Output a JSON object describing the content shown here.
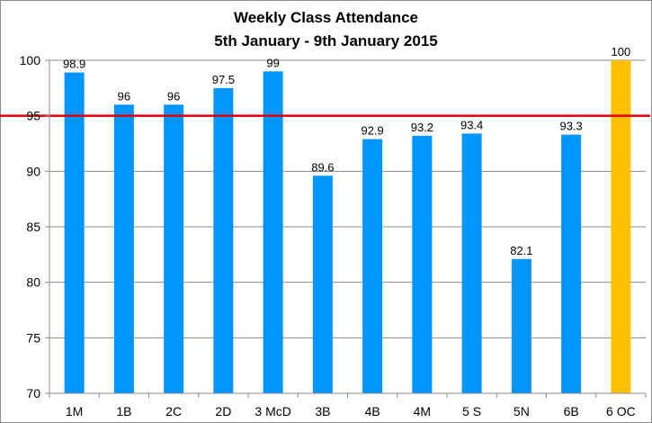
{
  "chart_data": {
    "type": "bar",
    "title": "Weekly Class Attendance",
    "subtitle": "5th January - 9th January 2015",
    "xlabel": "",
    "ylabel": "",
    "categories": [
      "1M",
      "1B",
      "2C",
      "2D",
      "3 McD",
      "3B",
      "4B",
      "4M",
      "5 S",
      "5N",
      "6B",
      "6 OC"
    ],
    "values": [
      98.9,
      96,
      96,
      97.5,
      99,
      89.6,
      92.9,
      93.2,
      93.4,
      82.1,
      93.3,
      100
    ],
    "data_labels": [
      "98.9",
      "96",
      "96",
      "97.5",
      "99",
      "89.6",
      "92.9",
      "93.2",
      "93.4",
      "82.1",
      "93.3",
      "100"
    ],
    "bar_colors": [
      "#0095ff",
      "#0095ff",
      "#0095ff",
      "#0095ff",
      "#0095ff",
      "#0095ff",
      "#0095ff",
      "#0095ff",
      "#0095ff",
      "#0095ff",
      "#0095ff",
      "#ffc000"
    ],
    "ylim": [
      70,
      100
    ],
    "yticks": [
      70,
      75,
      80,
      85,
      90,
      95,
      100
    ],
    "grid": true,
    "legend": "none",
    "target_line": {
      "value": 95,
      "color": "#e00000"
    }
  },
  "colors": {
    "gridline": "#8c8c8c",
    "axis": "#8c8c8c",
    "frame": "#8c8c8c"
  }
}
